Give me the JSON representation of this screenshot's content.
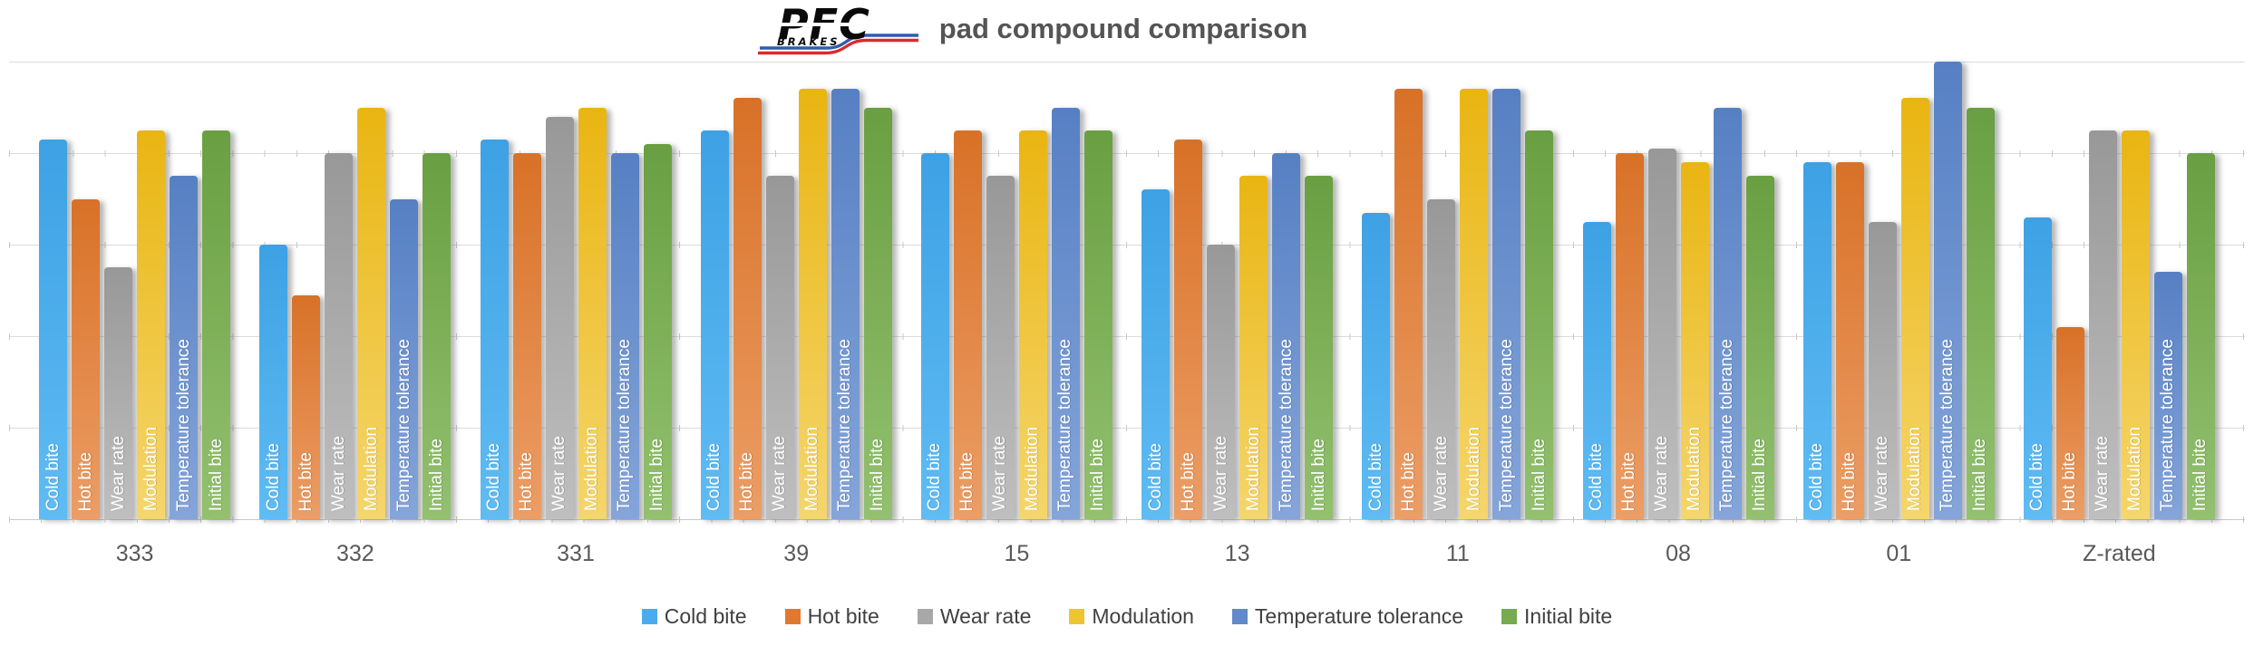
{
  "header": {
    "title": "pad compound comparison",
    "logo": {
      "main": "PFC",
      "sub": "BRAKES",
      "stripe_blue": "#2F5DA8",
      "stripe_red": "#D92B2F",
      "letters_color": "#0A0A0A"
    }
  },
  "chart_data": {
    "type": "bar",
    "title": "pad compound comparison",
    "categories": [
      "333",
      "332",
      "331",
      "39",
      "15",
      "13",
      "11",
      "08",
      "01",
      "Z-rated"
    ],
    "series": [
      {
        "name": "Cold bite",
        "color": "#4AACEC",
        "color_top": "#3DA1E4",
        "color_bottom": "#5FBCF4",
        "values": [
          8.3,
          6.0,
          8.3,
          8.5,
          8.0,
          7.2,
          6.7,
          6.5,
          7.8,
          6.6
        ]
      },
      {
        "name": "Hot bite",
        "color": "#E0792F",
        "color_top": "#D87127",
        "color_bottom": "#EC9E66",
        "values": [
          7.0,
          4.9,
          8.0,
          9.2,
          8.5,
          8.3,
          9.4,
          8.0,
          7.8,
          4.2
        ]
      },
      {
        "name": "Wear rate",
        "color": "#A8A8A8",
        "color_top": "#989898",
        "color_bottom": "#BFBFBF",
        "values": [
          5.5,
          8.0,
          8.8,
          7.5,
          7.5,
          6.0,
          7.0,
          8.1,
          6.5,
          8.5
        ]
      },
      {
        "name": "Modulation",
        "color": "#EFC433",
        "color_top": "#E9B512",
        "color_bottom": "#F5D66C",
        "values": [
          8.5,
          9.0,
          9.0,
          9.4,
          8.5,
          7.5,
          9.4,
          7.8,
          9.2,
          8.5
        ]
      },
      {
        "name": "Temperature tolerance",
        "color": "#6289C9",
        "color_top": "#5680C3",
        "color_bottom": "#85A5DA",
        "values": [
          7.5,
          7.0,
          8.0,
          9.4,
          9.0,
          8.0,
          9.4,
          9.0,
          10.0,
          5.4
        ]
      },
      {
        "name": "Initial bite",
        "color": "#76AB4F",
        "color_top": "#699F42",
        "color_bottom": "#93C16F",
        "values": [
          8.5,
          8.0,
          8.2,
          9.0,
          8.5,
          7.5,
          8.5,
          7.5,
          9.0,
          8.0
        ]
      }
    ],
    "ylim": [
      0,
      10
    ],
    "gridline_interval": 2,
    "gridline_count": 6,
    "grid": "horizontal",
    "y_axis_labels_visible": false,
    "bar_text_labels": "series name drawn vertically in white at base of each bar",
    "legend_position": "bottom",
    "legend_entries": [
      "Cold bite",
      "Hot bite",
      "Wear rate",
      "Modulation",
      "Temperature tolerance",
      "Initial bite"
    ]
  }
}
